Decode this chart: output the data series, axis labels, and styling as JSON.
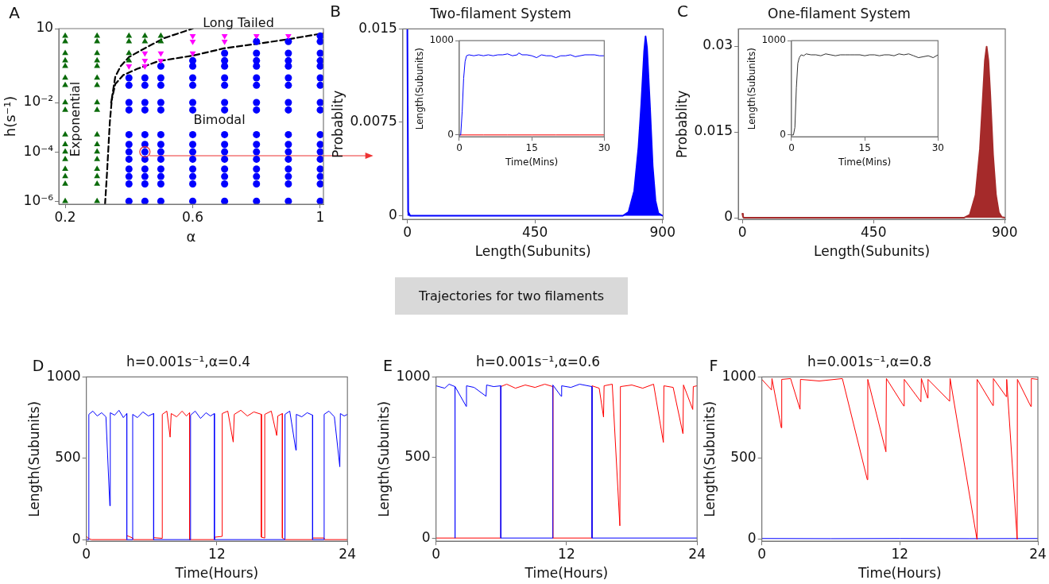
{
  "chart_data": [
    {
      "type": "scatter",
      "xlabel": "α",
      "ylabel": "h(s⁻¹)",
      "log": "y",
      "marker": "none",
      "xlim": [
        0.18,
        1.01
      ],
      "ylim": [
        7.5e-07,
        10
      ],
      "xticks": [
        0.2,
        0.6,
        1
      ],
      "yticks": [
        {
          "value": 10,
          "label": "10"
        },
        {
          "value": 0.01,
          "label": "10⁻²"
        },
        {
          "value": 0.0001,
          "label": "10⁻⁴"
        },
        {
          "value": 1e-06,
          "label": "10⁻⁶"
        }
      ],
      "annotations": [
        "A",
        "Exponential",
        "Long Tailed",
        "Bimodal"
      ],
      "series": [
        {
          "color": "#0b6b0b",
          "marker": "triangle",
          "x": [
            0.2,
            0.2,
            0.2,
            0.2,
            0.2,
            0.2,
            0.2,
            0.2,
            0.2,
            0.2,
            0.2,
            0.2,
            0.2,
            0.2,
            0.2,
            0.2,
            0.2,
            0.3,
            0.3,
            0.3,
            0.3,
            0.3,
            0.3,
            0.3,
            0.3,
            0.3,
            0.3,
            0.3,
            0.3,
            0.3,
            0.3,
            0.3,
            0.3,
            0.3,
            0.4,
            0.4,
            0.4,
            0.4,
            0.45,
            0.45,
            0.5,
            0.5
          ],
          "values": [
            5,
            3,
            1,
            0.5,
            0.3,
            0.1,
            0.05,
            0.01,
            0.005,
            0.0005,
            0.0002,
            0.0001,
            5e-05,
            2e-05,
            1e-05,
            5e-06,
            1e-06,
            5,
            3,
            1,
            0.5,
            0.3,
            0.1,
            0.05,
            0.01,
            0.005,
            0.0005,
            0.0002,
            0.0001,
            5e-05,
            2e-05,
            1e-05,
            5e-06,
            1e-06,
            5,
            3,
            1,
            0.5,
            5,
            3,
            5,
            3
          ]
        },
        {
          "color": "#ff00ff",
          "marker": "triangle_down",
          "x": [
            0.4,
            0.45,
            0.45,
            0.45,
            0.5,
            0.5,
            0.6,
            0.6,
            0.6,
            0.7,
            0.7,
            0.8,
            0.9
          ],
          "values": [
            0.3,
            1,
            0.5,
            0.3,
            1,
            0.5,
            5,
            3,
            1,
            5,
            3,
            5,
            5
          ]
        },
        {
          "color": "#0000ff",
          "marker": "circle",
          "x": [
            0.4,
            0.4,
            0.4,
            0.4,
            0.4,
            0.4,
            0.4,
            0.4,
            0.4,
            0.4,
            0.4,
            0.4,
            0.45,
            0.45,
            0.45,
            0.45,
            0.45,
            0.45,
            0.45,
            0.45,
            0.45,
            0.45,
            0.45,
            0.45,
            0.5,
            0.5,
            0.5,
            0.5,
            0.5,
            0.5,
            0.5,
            0.5,
            0.5,
            0.5,
            0.5,
            0.5,
            0.5,
            0.6,
            0.6,
            0.6,
            0.6,
            0.6,
            0.6,
            0.6,
            0.6,
            0.6,
            0.6,
            0.6,
            0.6,
            0.6,
            0.6,
            0.7,
            0.7,
            0.7,
            0.7,
            0.7,
            0.7,
            0.7,
            0.7,
            0.7,
            0.7,
            0.7,
            0.7,
            0.7,
            0.7,
            0.7,
            0.8,
            0.8,
            0.8,
            0.8,
            0.8,
            0.8,
            0.8,
            0.8,
            0.8,
            0.8,
            0.8,
            0.8,
            0.8,
            0.8,
            0.8,
            0.8,
            0.9,
            0.9,
            0.9,
            0.9,
            0.9,
            0.9,
            0.9,
            0.9,
            0.9,
            0.9,
            0.9,
            0.9,
            0.9,
            0.9,
            0.9,
            0.9,
            1,
            1,
            1,
            1,
            1,
            1,
            1,
            1,
            1,
            1,
            1,
            1,
            1,
            1,
            1,
            1,
            1
          ],
          "values": [
            0.1,
            0.05,
            0.01,
            0.005,
            0.0005,
            0.0002,
            0.0001,
            5e-05,
            2e-05,
            1e-05,
            5e-06,
            1e-06,
            0.1,
            0.05,
            0.01,
            0.005,
            0.0005,
            0.0002,
            0.0001,
            5e-05,
            2e-05,
            1e-05,
            5e-06,
            1e-06,
            0.3,
            0.1,
            0.05,
            0.01,
            0.005,
            0.0005,
            0.0002,
            0.0001,
            5e-05,
            2e-05,
            1e-05,
            5e-06,
            1e-06,
            0.5,
            0.3,
            0.1,
            0.05,
            0.01,
            0.005,
            0.0005,
            0.0002,
            0.0001,
            5e-05,
            2e-05,
            1e-05,
            5e-06,
            1e-06,
            1,
            0.5,
            0.3,
            0.1,
            0.05,
            0.01,
            0.005,
            0.0005,
            0.0002,
            0.0001,
            5e-05,
            2e-05,
            1e-05,
            5e-06,
            1e-06,
            3,
            1,
            0.5,
            0.3,
            0.1,
            0.05,
            0.01,
            0.005,
            0.0005,
            0.0002,
            0.0001,
            5e-05,
            2e-05,
            1e-05,
            5e-06,
            1e-06,
            3,
            1,
            0.5,
            0.3,
            0.1,
            0.05,
            0.01,
            0.005,
            0.0005,
            0.0002,
            0.0001,
            5e-05,
            2e-05,
            1e-05,
            5e-06,
            1e-06,
            5,
            3,
            1,
            0.5,
            0.3,
            0.1,
            0.05,
            0.01,
            0.005,
            0.0005,
            0.0002,
            0.0001,
            5e-05,
            2e-05,
            1e-05,
            5e-06,
            1e-06
          ]
        },
        {
          "type": "line",
          "color": "#000000",
          "line_style": "dashed",
          "x": [
            0.325,
            0.331,
            0.34,
            0.347,
            0.357,
            0.374,
            0.4,
            0.45,
            0.51,
            0.6
          ],
          "values": [
            7.5e-07,
            1.3e-05,
            0.0016,
            0.017,
            0.11,
            0.3,
            0.7,
            1.6,
            4.1,
            10
          ]
        },
        {
          "type": "line",
          "color": "#000000",
          "line_style": "dashed",
          "x": [
            0.344,
            0.357,
            0.382,
            0.425,
            0.493,
            0.6,
            0.7,
            0.8,
            0.9,
            1.01
          ],
          "values": [
            0.01,
            0.056,
            0.13,
            0.23,
            0.48,
            0.8,
            1.6,
            2.4,
            3.7,
            6.5
          ]
        }
      ]
    },
    {
      "type": "area",
      "title": "Two-filament System",
      "xlabel": "Length(Subunits)",
      "ylabel": "Probablity",
      "marker": "none",
      "xlim": [
        -16,
        902
      ],
      "ylim": [
        -0.0003,
        0.015
      ],
      "xticks": [
        0,
        450,
        900
      ],
      "yticks": [
        0,
        0.0075,
        0.015
      ],
      "annotations": [
        "B"
      ],
      "series": [
        {
          "color": "#0000ff",
          "x": [
            0,
            3,
            10,
            200,
            500,
            760,
            780,
            800,
            815,
            825,
            835,
            840,
            845,
            855,
            865,
            875,
            885,
            900
          ],
          "values": [
            0.015,
            0.0003,
            0,
            0,
            0,
            0,
            0.0003,
            0.002,
            0.0055,
            0.009,
            0.0132,
            0.0144,
            0.0135,
            0.009,
            0.004,
            0.0012,
            0.0002,
            0
          ]
        }
      ]
    },
    {
      "type": "line",
      "xlabel": "Time(Mins)",
      "ylabel": "Length(Subunits)",
      "marker": "none",
      "xlim": [
        0,
        30
      ],
      "ylim": [
        -20,
        1000
      ],
      "xticks": [
        0,
        15,
        30
      ],
      "yticks": [
        0,
        1000
      ],
      "series": [
        {
          "color": "#0000ff",
          "x": [
            0,
            0.3,
            0.6,
            0.9,
            1.2,
            1.5,
            2,
            3,
            4,
            5,
            6,
            7,
            8,
            9,
            10,
            11,
            12,
            12.3,
            13,
            14,
            15,
            16,
            17,
            18,
            19,
            20,
            21,
            22,
            23,
            24,
            25,
            26,
            27,
            28,
            29,
            30
          ],
          "values": [
            0,
            0,
            250,
            600,
            780,
            840,
            850,
            840,
            850,
            840,
            850,
            840,
            850,
            850,
            860,
            840,
            850,
            870,
            850,
            850,
            840,
            820,
            850,
            840,
            840,
            820,
            840,
            840,
            850,
            830,
            840,
            850,
            850,
            850,
            840,
            840
          ]
        },
        {
          "color": "#ff0000",
          "x": [
            0,
            5,
            10,
            15,
            20,
            25,
            30
          ],
          "values": [
            0,
            0,
            0,
            0,
            0,
            0,
            0
          ]
        }
      ]
    },
    {
      "type": "area",
      "title": "One-filament System",
      "xlabel": "Length(Subunits)",
      "ylabel": "Probablity",
      "marker": "none",
      "xlim": [
        -14,
        902
      ],
      "ylim": [
        -0.0003,
        0.033
      ],
      "xticks": [
        0,
        450,
        900
      ],
      "yticks": [
        0,
        0.015,
        0.03
      ],
      "annotations": [
        "C"
      ],
      "series": [
        {
          "color": "#a52a2a",
          "x": [
            0,
            2,
            5,
            10,
            300,
            600,
            760,
            780,
            800,
            815,
            825,
            832,
            838,
            844,
            850,
            860,
            870,
            880,
            890,
            902
          ],
          "values": [
            0.0007,
            0.0002,
            0,
            0,
            0,
            0,
            0,
            0.0005,
            0.004,
            0.012,
            0.021,
            0.0275,
            0.0299,
            0.0275,
            0.022,
            0.011,
            0.004,
            0.0009,
            0.0001,
            0
          ]
        }
      ]
    },
    {
      "type": "line",
      "xlabel": "Time(Mins)",
      "ylabel": "Length(Subunits)",
      "marker": "none",
      "xlim": [
        0,
        30
      ],
      "ylim": [
        -20,
        1000
      ],
      "xticks": [
        0,
        15,
        30
      ],
      "yticks": [
        0,
        1000
      ],
      "series": [
        {
          "color": "#333333",
          "x": [
            0,
            0.4,
            0.7,
            1,
            1.3,
            1.6,
            2,
            2.5,
            3,
            4,
            5,
            6,
            7,
            8,
            9,
            10,
            11,
            12,
            13,
            14,
            15,
            16,
            17,
            18,
            19,
            20,
            21,
            22,
            23,
            24,
            25,
            26,
            27,
            28,
            29,
            30
          ],
          "values": [
            0,
            0,
            80,
            500,
            760,
            820,
            850,
            840,
            860,
            850,
            850,
            840,
            860,
            850,
            840,
            850,
            850,
            850,
            850,
            850,
            840,
            850,
            850,
            840,
            850,
            850,
            840,
            860,
            850,
            860,
            840,
            820,
            830,
            840,
            820,
            850
          ]
        }
      ]
    },
    {
      "type": "other",
      "title": "Trajectories for two filaments"
    },
    {
      "type": "line",
      "title": "h=0.001s⁻¹,α=0.4",
      "xlabel": "Time(Hours)",
      "ylabel": "Length(Subunits)",
      "marker": "none",
      "xlim": [
        0,
        24
      ],
      "ylim": [
        -10,
        1000
      ],
      "xticks": [
        0,
        12,
        24
      ],
      "yticks": [
        0,
        500,
        1000
      ],
      "annotations": [
        "D"
      ],
      "series": [
        {
          "color": "#0000ff",
          "x": [
            0,
            0.23,
            0.23,
            0.6,
            1.0,
            1.4,
            1.8,
            2.16,
            2.2,
            2.6,
            3.0,
            3.4,
            3.72,
            3.72,
            4.26,
            4.26,
            4.7,
            5.2,
            5.7,
            6.19,
            6.19,
            9.58,
            9.58,
            10.0,
            10.5,
            11.0,
            11.4,
            11.77,
            11.77,
            18.26,
            18.26,
            18.7,
            19.26,
            19.3,
            19.8,
            20.3,
            20.8,
            20.8,
            21.86,
            21.86,
            22.3,
            22.8,
            23.3,
            23.35,
            23.7,
            24
          ],
          "values": [
            0,
            0,
            770,
            790,
            760,
            780,
            755,
            208,
            780,
            765,
            795,
            750,
            775,
            0,
            0,
            770,
            750,
            785,
            760,
            775,
            0,
            0,
            765,
            790,
            745,
            780,
            760,
            775,
            0,
            0,
            770,
            790,
            550,
            770,
            755,
            780,
            765,
            0,
            0,
            770,
            790,
            755,
            448,
            775,
            760,
            770
          ]
        },
        {
          "color": "#ff0000",
          "x": [
            0,
            0.23,
            0.5,
            3.72,
            3.72,
            4.26,
            4.3,
            6.19,
            6.2,
            6.98,
            6.98,
            7.4,
            7.7,
            7.8,
            8.3,
            8.8,
            9.2,
            9.49,
            9.49,
            11.77,
            11.8,
            12.49,
            12.49,
            13.0,
            13.5,
            13.6,
            14.2,
            14.8,
            15.4,
            16.09,
            16.09,
            16.4,
            16.4,
            17.0,
            17.5,
            17.6,
            18.02,
            18.02,
            18.3,
            20.8,
            20.8,
            21.86,
            21.9,
            24
          ],
          "values": [
            20,
            5,
            0,
            0,
            25,
            10,
            0,
            0,
            12,
            8,
            770,
            790,
            630,
            775,
            755,
            790,
            760,
            780,
            0,
            0,
            15,
            20,
            775,
            790,
            600,
            770,
            795,
            760,
            785,
            770,
            15,
            10,
            770,
            790,
            640,
            760,
            775,
            10,
            0,
            0,
            10,
            10,
            0,
            0
          ]
        }
      ]
    },
    {
      "type": "line",
      "title": "h=0.001s⁻¹,α=0.6",
      "xlabel": "Time(Hours)",
      "ylabel": "Length(Subunits)",
      "marker": "none",
      "xlim": [
        0,
        24
      ],
      "ylim": [
        -20,
        1000
      ],
      "xticks": [
        0,
        12,
        24
      ],
      "yticks": [
        0,
        500,
        1000
      ],
      "annotations": [
        "E"
      ],
      "series": [
        {
          "color": "#0000ff",
          "x": [
            0,
            0.8,
            1.2,
            1.74,
            1.74,
            1.76,
            2.78,
            2.8,
            3.5,
            4.6,
            4.65,
            5.3,
            5.96,
            5.96,
            10.74,
            10.74,
            11.5,
            11.55,
            12.4,
            13.2,
            14.34,
            14.34,
            24
          ],
          "values": [
            945,
            930,
            955,
            940,
            0,
            940,
            817,
            945,
            935,
            880,
            950,
            940,
            945,
            0,
            0,
            950,
            880,
            945,
            935,
            955,
            940,
            0,
            0
          ]
        },
        {
          "color": "#ff0000",
          "x": [
            0,
            5.96,
            5.96,
            6.5,
            7.3,
            8.2,
            9.1,
            10.0,
            10.74,
            10.74,
            14.34,
            14.34,
            15.0,
            15.4,
            15.45,
            16.2,
            16.9,
            16.95,
            18.0,
            19.0,
            20.0,
            20.9,
            20.95,
            21.8,
            22.7,
            22.75,
            23.6,
            23.65,
            24
          ],
          "values": [
            0,
            0,
            940,
            955,
            930,
            950,
            935,
            955,
            940,
            0,
            0,
            945,
            930,
            751,
            945,
            955,
            76,
            940,
            950,
            930,
            955,
            594,
            945,
            935,
            648,
            950,
            798,
            940,
            945
          ]
        }
      ]
    },
    {
      "type": "line",
      "title": "h=0.001s⁻¹,α=0.8",
      "xlabel": "Time(Hours)",
      "ylabel": "Length(Subunits)",
      "marker": "none",
      "xlim": [
        0,
        24
      ],
      "ylim": [
        -12,
        1000
      ],
      "xticks": [
        0,
        12,
        24
      ],
      "yticks": [
        0,
        500,
        1000
      ],
      "annotations": [
        "F"
      ],
      "series": [
        {
          "color": "#ff0000",
          "x": [
            0,
            0.84,
            0.88,
            1.69,
            1.73,
            2.5,
            3.32,
            3.36,
            5.0,
            7.0,
            9.17,
            9.21,
            10.79,
            10.83,
            12.34,
            12.38,
            13.83,
            13.87,
            14.41,
            14.45,
            16.33,
            16.37,
            18.7,
            18.72,
            20.09,
            20.13,
            21.25,
            21.29,
            22.2,
            22.22,
            23.39,
            23.43,
            24
          ],
          "values": [
            985,
            920,
            990,
            687,
            985,
            990,
            801,
            985,
            975,
            990,
            367,
            985,
            539,
            990,
            821,
            985,
            847,
            990,
            870,
            985,
            850,
            990,
            0,
            985,
            824,
            990,
            879,
            985,
            0,
            985,
            818,
            990,
            985
          ]
        },
        {
          "color": "#0000ff",
          "x": [
            0,
            6,
            12,
            18,
            24
          ],
          "values": [
            5,
            4,
            5,
            4,
            5
          ]
        }
      ]
    }
  ]
}
